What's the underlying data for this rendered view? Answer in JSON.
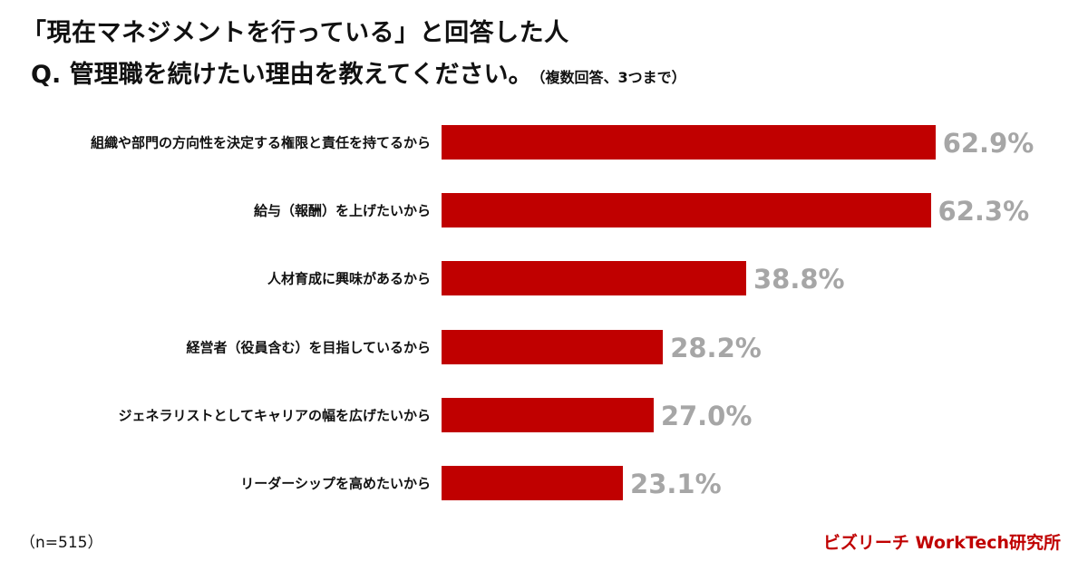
{
  "title_line1": "「現在マネジメントを行っている」と回答した人",
  "title_line2": "Q. 管理職を続けたい理由を教えてください。",
  "title_note": "（複数回答、3つまで）",
  "sample_size": "（n=515）",
  "brand": "ビズリーチ WorkTech研究所",
  "colors": {
    "bar": "#c00000",
    "value_label": "#a6a6a6"
  },
  "chart_data": {
    "type": "bar",
    "orientation": "horizontal",
    "title": "Q. 管理職を続けたい理由を教えてください。（複数回答、3つまで）",
    "categories": [
      "組織や部門の方向性を決定する権限と責任を持てるから",
      "給与（報酬）を上げたいから",
      "人材育成に興味があるから",
      "経営者（役員含む）を目指しているから",
      "ジェネラリストとしてキャリアの幅を広げたいから",
      "リーダーシップを高めたいから"
    ],
    "values": [
      62.9,
      62.3,
      38.8,
      28.2,
      27.0,
      23.1
    ],
    "value_labels": [
      "62.9%",
      "62.3%",
      "38.8%",
      "28.2%",
      "27.0%",
      "23.1%"
    ],
    "unit": "%",
    "xlim": [
      0,
      100
    ],
    "grid": false
  }
}
